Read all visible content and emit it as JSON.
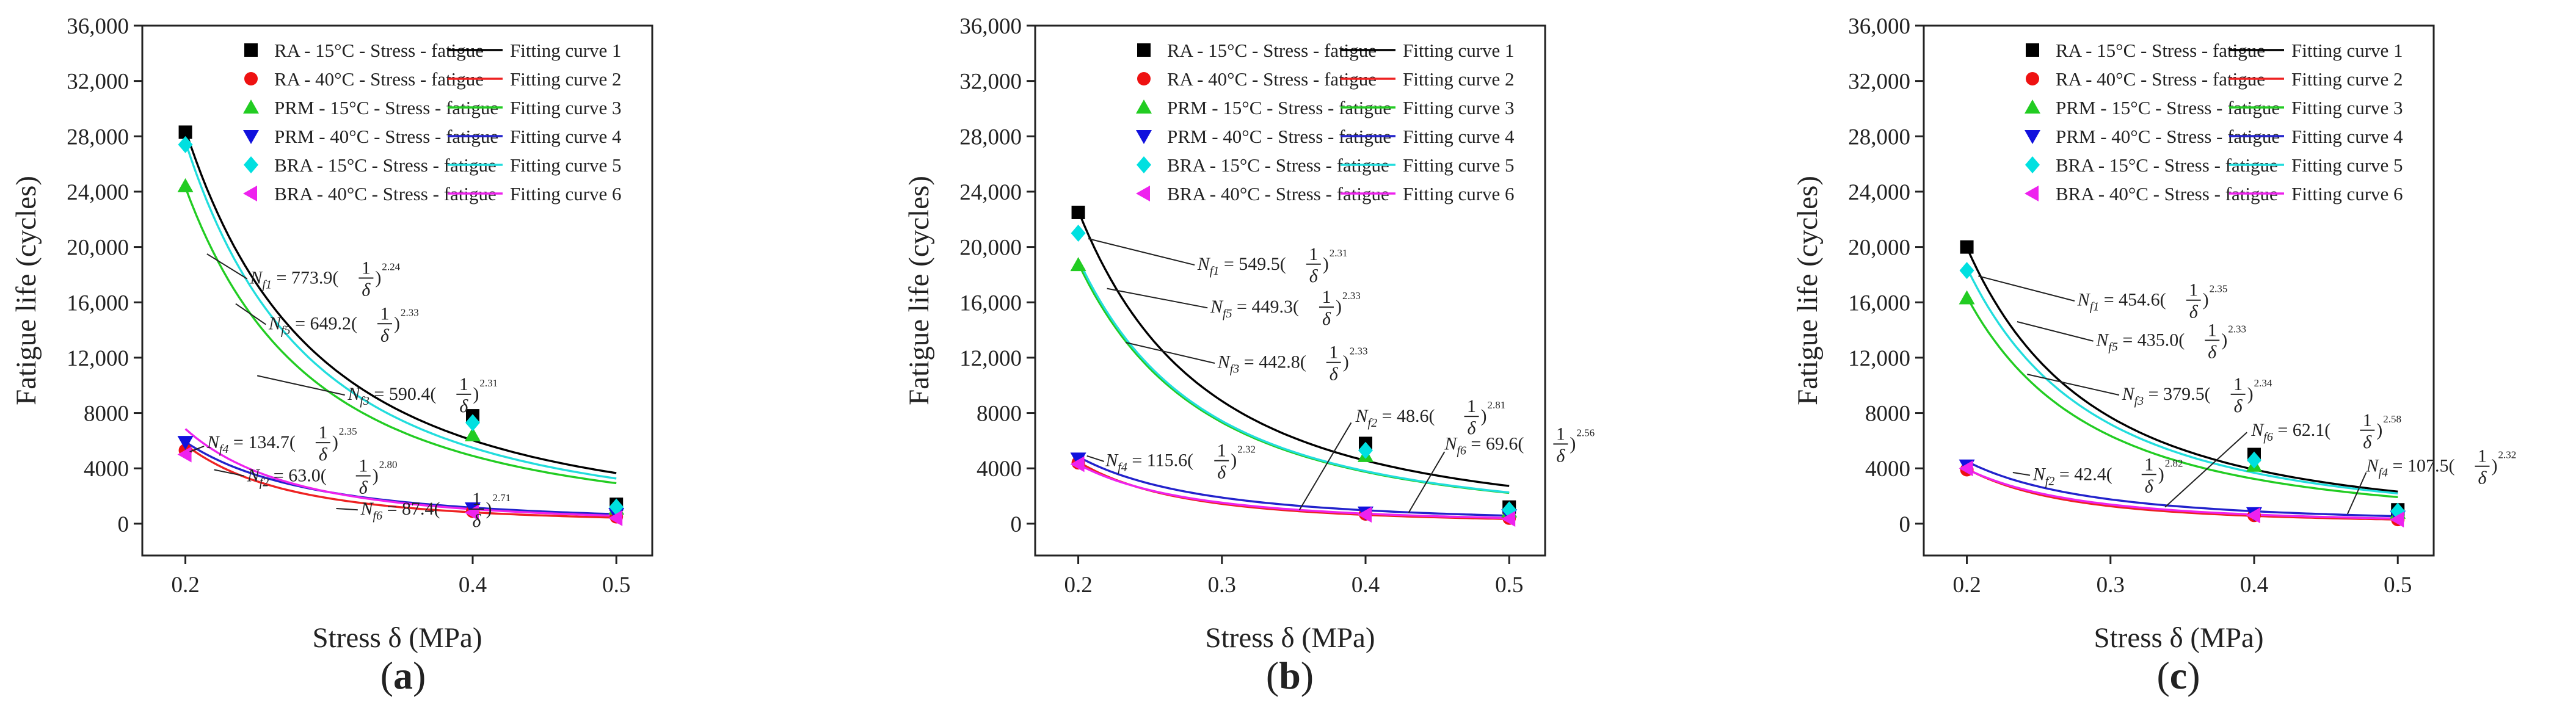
{
  "chart_data": [
    {
      "type": "scatter",
      "panel_label": "(a)",
      "panel_letter": "a",
      "xlabel": "Stress δ (MPa)",
      "ylabel": "Fatigue life (cycles)",
      "xlim": [
        0.17,
        0.525
      ],
      "ylim": [
        -2300,
        36000
      ],
      "x_ticks": [
        0.2,
        0.4,
        0.5
      ],
      "x_tick_labels": [
        "0.2",
        "0.4",
        "0.5"
      ],
      "y_ticks": [
        0,
        4000,
        8000,
        12000,
        16000,
        20000,
        24000,
        28000,
        32000,
        36000
      ],
      "y_tick_labels": [
        "0",
        "4000",
        "8000",
        "12,000",
        "16,000",
        "20,000",
        "24,000",
        "28,000",
        "32,000",
        "36,000"
      ],
      "grid": false,
      "legend_position": "top-right",
      "series": [
        {
          "name": "RA - 15°C - Stress - fatigue",
          "x": [
            0.2,
            0.4,
            0.5
          ],
          "y": [
            28300,
            7800,
            1400
          ],
          "marker": "square",
          "color": "#000000"
        },
        {
          "name": "RA - 40°C - Stress - fatigue",
          "x": [
            0.2,
            0.4,
            0.5
          ],
          "y": [
            5300,
            900,
            500
          ],
          "marker": "circle",
          "color": "#ee1111"
        },
        {
          "name": "PRM - 15°C - Stress - fatigue",
          "x": [
            0.2,
            0.4,
            0.5
          ],
          "y": [
            24400,
            6400,
            1100
          ],
          "marker": "triangle-up",
          "color": "#22cc22"
        },
        {
          "name": "PRM - 40°C - Stress - fatigue",
          "x": [
            0.2,
            0.4,
            0.5
          ],
          "y": [
            5900,
            1100,
            700
          ],
          "marker": "triangle-down",
          "color": "#1111dd"
        },
        {
          "name": "BRA - 15°C - Stress - fatigue",
          "x": [
            0.2,
            0.4,
            0.5
          ],
          "y": [
            27400,
            7300,
            1200
          ],
          "marker": "diamond",
          "color": "#00e0e0"
        },
        {
          "name": "BRA - 40°C - Stress - fatigue",
          "x": [
            0.2,
            0.4,
            0.5
          ],
          "y": [
            5000,
            800,
            400
          ],
          "marker": "triangle-left",
          "color": "#ee22ee"
        }
      ],
      "fitting_curves": [
        {
          "name": "Fitting curve 1",
          "coef": 773.9,
          "exp": 2.24,
          "color": "#000000"
        },
        {
          "name": "Fitting curve 2",
          "coef": 63.0,
          "exp": 2.8,
          "color": "#ee2222"
        },
        {
          "name": "Fitting curve 3",
          "coef": 590.4,
          "exp": 2.31,
          "color": "#22cc22"
        },
        {
          "name": "Fitting curve 4",
          "coef": 134.7,
          "exp": 2.35,
          "color": "#2222cc"
        },
        {
          "name": "Fitting curve 5",
          "coef": 649.2,
          "exp": 2.33,
          "color": "#22dddd"
        },
        {
          "name": "Fitting curve 6",
          "coef": 87.4,
          "exp": 2.71,
          "color": "#ee22ee"
        }
      ],
      "annotations": [
        {
          "sub": "f1",
          "coef": "773.9",
          "exp": "2.24"
        },
        {
          "sub": "f5",
          "coef": "649.2",
          "exp": "2.33"
        },
        {
          "sub": "f3",
          "coef": "590.4",
          "exp": "2.31"
        },
        {
          "sub": "f4",
          "coef": "134.7",
          "exp": "2.35"
        },
        {
          "sub": "f2",
          "coef": "63.0",
          "exp": "2.80"
        },
        {
          "sub": "f6",
          "coef": "87.4",
          "exp": "2.71"
        }
      ]
    },
    {
      "type": "scatter",
      "panel_label": "(b)",
      "panel_letter": "b",
      "xlabel": "Stress δ (MPa)",
      "ylabel": "Fatigue life (cycles)",
      "xlim": [
        0.17,
        0.525
      ],
      "ylim": [
        -2300,
        36000
      ],
      "x_ticks": [
        0.2,
        0.3,
        0.4,
        0.5
      ],
      "x_tick_labels": [
        "0.2",
        "0.3",
        "0.4",
        "0.5"
      ],
      "y_ticks": [
        0,
        4000,
        8000,
        12000,
        16000,
        20000,
        24000,
        28000,
        32000,
        36000
      ],
      "y_tick_labels": [
        "0",
        "4000",
        "8000",
        "12,000",
        "16,000",
        "20,000",
        "24,000",
        "28,000",
        "32,000",
        "36,000"
      ],
      "grid": false,
      "legend_position": "top-right",
      "series": [
        {
          "name": "RA - 15°C - Stress - fatigue",
          "x": [
            0.2,
            0.4,
            0.5
          ],
          "y": [
            22500,
            5800,
            1200
          ],
          "marker": "square",
          "color": "#000000"
        },
        {
          "name": "RA - 40°C - Stress - fatigue",
          "x": [
            0.2,
            0.4,
            0.5
          ],
          "y": [
            4400,
            700,
            400
          ],
          "marker": "circle",
          "color": "#ee1111"
        },
        {
          "name": "PRM - 15°C - Stress - fatigue",
          "x": [
            0.2,
            0.4,
            0.5
          ],
          "y": [
            18700,
            4900,
            900
          ],
          "marker": "triangle-up",
          "color": "#22cc22"
        },
        {
          "name": "PRM - 40°C - Stress - fatigue",
          "x": [
            0.2,
            0.4,
            0.5
          ],
          "y": [
            4700,
            800,
            600
          ],
          "marker": "triangle-down",
          "color": "#1111dd"
        },
        {
          "name": "BRA - 15°C - Stress - fatigue",
          "x": [
            0.2,
            0.4,
            0.5
          ],
          "y": [
            21000,
            5300,
            1000
          ],
          "marker": "diamond",
          "color": "#00e0e0"
        },
        {
          "name": "BRA - 40°C - Stress - fatigue",
          "x": [
            0.2,
            0.4,
            0.5
          ],
          "y": [
            4300,
            650,
            350
          ],
          "marker": "triangle-left",
          "color": "#ee22ee"
        }
      ],
      "fitting_curves": [
        {
          "name": "Fitting curve 1",
          "coef": 549.5,
          "exp": 2.31,
          "color": "#000000"
        },
        {
          "name": "Fitting curve 2",
          "coef": 48.6,
          "exp": 2.81,
          "color": "#ee2222"
        },
        {
          "name": "Fitting curve 3",
          "coef": 442.8,
          "exp": 2.33,
          "color": "#22cc22"
        },
        {
          "name": "Fitting curve 4",
          "coef": 115.6,
          "exp": 2.32,
          "color": "#2222cc"
        },
        {
          "name": "Fitting curve 5",
          "coef": 449.3,
          "exp": 2.33,
          "color": "#22dddd"
        },
        {
          "name": "Fitting curve 6",
          "coef": 69.6,
          "exp": 2.56,
          "color": "#ee22ee"
        }
      ],
      "annotations": [
        {
          "sub": "f1",
          "coef": "549.5",
          "exp": "2.31"
        },
        {
          "sub": "f5",
          "coef": "449.3",
          "exp": "2.33"
        },
        {
          "sub": "f3",
          "coef": "442.8",
          "exp": "2.33"
        },
        {
          "sub": "f2",
          "coef": "48.6",
          "exp": "2.81"
        },
        {
          "sub": "f4",
          "coef": "115.6",
          "exp": "2.32"
        },
        {
          "sub": "f6",
          "coef": "69.6",
          "exp": "2.56"
        }
      ]
    },
    {
      "type": "scatter",
      "panel_label": "(c)",
      "panel_letter": "c",
      "xlabel": "Stress δ (MPa)",
      "ylabel": "Fatigue life (cycles)",
      "xlim": [
        0.17,
        0.525
      ],
      "ylim": [
        -2300,
        36000
      ],
      "x_ticks": [
        0.2,
        0.3,
        0.4,
        0.5
      ],
      "x_tick_labels": [
        "0.2",
        "0.3",
        "0.4",
        "0.5"
      ],
      "y_ticks": [
        0,
        4000,
        8000,
        12000,
        16000,
        20000,
        24000,
        28000,
        32000,
        36000
      ],
      "y_tick_labels": [
        "0",
        "4000",
        "8000",
        "12,000",
        "16,000",
        "20,000",
        "24,000",
        "28,000",
        "32,000",
        "36,000"
      ],
      "grid": false,
      "legend_position": "top-right",
      "series": [
        {
          "name": "RA - 15°C - Stress - fatigue",
          "x": [
            0.2,
            0.4,
            0.5
          ],
          "y": [
            20000,
            5000,
            1000
          ],
          "marker": "square",
          "color": "#000000"
        },
        {
          "name": "RA - 40°C - Stress - fatigue",
          "x": [
            0.2,
            0.4,
            0.5
          ],
          "y": [
            3900,
            600,
            300
          ],
          "marker": "circle",
          "color": "#ee1111"
        },
        {
          "name": "PRM - 15°C - Stress - fatigue",
          "x": [
            0.2,
            0.4,
            0.5
          ],
          "y": [
            16300,
            4200,
            800
          ],
          "marker": "triangle-up",
          "color": "#22cc22"
        },
        {
          "name": "PRM - 40°C - Stress - fatigue",
          "x": [
            0.2,
            0.4,
            0.5
          ],
          "y": [
            4200,
            750,
            500
          ],
          "marker": "triangle-down",
          "color": "#1111dd"
        },
        {
          "name": "BRA - 15°C - Stress - fatigue",
          "x": [
            0.2,
            0.4,
            0.5
          ],
          "y": [
            18300,
            4600,
            900
          ],
          "marker": "diamond",
          "color": "#00e0e0"
        },
        {
          "name": "BRA - 40°C - Stress - fatigue",
          "x": [
            0.2,
            0.4,
            0.5
          ],
          "y": [
            4000,
            600,
            300
          ],
          "marker": "triangle-left",
          "color": "#ee22ee"
        }
      ],
      "fitting_curves": [
        {
          "name": "Fitting curve 1",
          "coef": 454.6,
          "exp": 2.35,
          "color": "#000000"
        },
        {
          "name": "Fitting curve 2",
          "coef": 42.4,
          "exp": 2.82,
          "color": "#ee2222"
        },
        {
          "name": "Fitting curve 3",
          "coef": 379.5,
          "exp": 2.34,
          "color": "#22cc22"
        },
        {
          "name": "Fitting curve 4",
          "coef": 107.5,
          "exp": 2.32,
          "color": "#2222cc"
        },
        {
          "name": "Fitting curve 5",
          "coef": 435.0,
          "exp": 2.33,
          "color": "#22dddd"
        },
        {
          "name": "Fitting curve 6",
          "coef": 62.1,
          "exp": 2.58,
          "color": "#ee22ee"
        }
      ],
      "annotations": [
        {
          "sub": "f1",
          "coef": "454.6",
          "exp": "2.35"
        },
        {
          "sub": "f5",
          "coef": "435.0",
          "exp": "2.33"
        },
        {
          "sub": "f3",
          "coef": "379.5",
          "exp": "2.34"
        },
        {
          "sub": "f6",
          "coef": "62.1",
          "exp": "2.58"
        },
        {
          "sub": "f2",
          "coef": "42.4",
          "exp": "2.82"
        },
        {
          "sub": "f4",
          "coef": "107.5",
          "exp": "2.32"
        }
      ]
    }
  ]
}
